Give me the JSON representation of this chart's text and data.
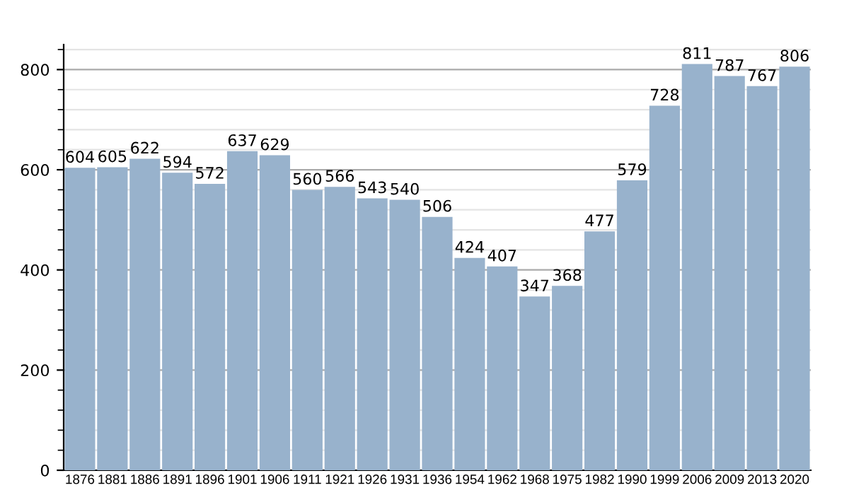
{
  "chart_data": {
    "type": "bar",
    "categories": [
      "1876",
      "1881",
      "1886",
      "1891",
      "1896",
      "1901",
      "1906",
      "1911",
      "1921",
      "1926",
      "1931",
      "1936",
      "1954",
      "1962",
      "1968",
      "1975",
      "1982",
      "1990",
      "1999",
      "2006",
      "2009",
      "2013",
      "2020"
    ],
    "values": [
      604,
      605,
      622,
      594,
      572,
      637,
      629,
      560,
      566,
      543,
      540,
      506,
      424,
      407,
      347,
      368,
      477,
      579,
      728,
      811,
      787,
      767,
      806
    ],
    "color": "#98b2cc",
    "ylim": [
      0,
      850
    ],
    "yticks": [
      0,
      200,
      400,
      600,
      800
    ],
    "grid": "y",
    "data_labels": true
  }
}
